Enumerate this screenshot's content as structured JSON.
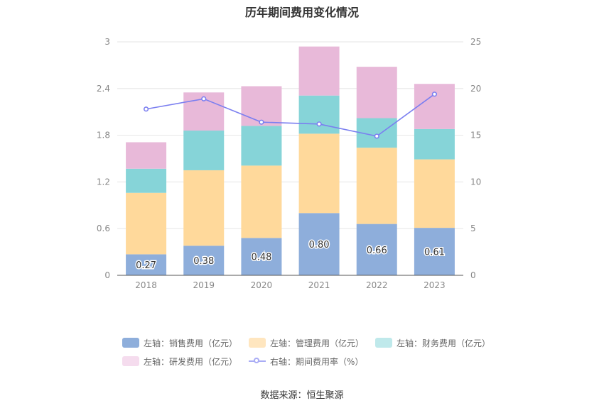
{
  "chart_data": {
    "type": "bar",
    "title": "历年期间费用变化情况",
    "categories": [
      "2018",
      "2019",
      "2020",
      "2021",
      "2022",
      "2023"
    ],
    "left_axis": {
      "ylim": [
        0,
        3
      ],
      "ticks": [
        "0",
        "0.6",
        "1.2",
        "1.8",
        "2.4",
        "3"
      ]
    },
    "right_axis": {
      "ylim": [
        0,
        25
      ],
      "ticks": [
        "0",
        "5",
        "10",
        "15",
        "20",
        "25"
      ]
    },
    "stacked": true,
    "grid": true,
    "legend_position": "bottom",
    "series": [
      {
        "name": "左轴：销售费用（亿元）",
        "type": "bar",
        "axis": "left",
        "color": "#8eaedb",
        "values": [
          0.27,
          0.38,
          0.48,
          0.8,
          0.66,
          0.61
        ],
        "labels": [
          "0.27",
          "0.38",
          "0.48",
          "0.80",
          "0.66",
          "0.61"
        ]
      },
      {
        "name": "左轴：管理费用（亿元）",
        "type": "bar",
        "axis": "left",
        "color": "#ffd99b",
        "values": [
          0.79,
          0.97,
          0.93,
          1.02,
          0.98,
          0.88
        ]
      },
      {
        "name": "左轴：财务费用（亿元）",
        "type": "bar",
        "axis": "left",
        "color": "#86d4d8",
        "values": [
          0.31,
          0.51,
          0.51,
          0.49,
          0.38,
          0.39
        ]
      },
      {
        "name": "左轴：研发费用（亿元）",
        "type": "bar",
        "axis": "left",
        "color": "#e8b9d9",
        "values": [
          0.34,
          0.49,
          0.51,
          0.63,
          0.66,
          0.58
        ]
      },
      {
        "name": "右轴：期间费用率（%）",
        "type": "line",
        "axis": "right",
        "color": "#7b7ff0",
        "values": [
          17.8,
          18.9,
          16.4,
          16.2,
          14.9,
          19.4
        ]
      }
    ],
    "legend_colors": [
      "#8eaedb",
      "#ffe6bf",
      "#bfe9eb",
      "#f5dcee",
      "#7b7ff0"
    ]
  },
  "source": "数据来源：恒生聚源"
}
